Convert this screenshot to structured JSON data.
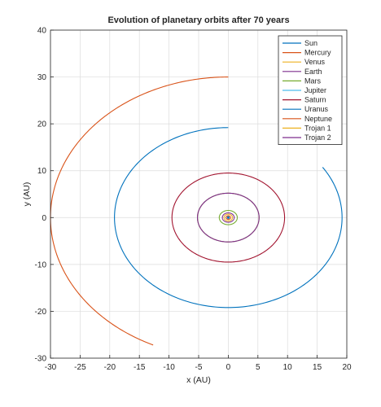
{
  "chart_data": {
    "type": "line",
    "title": "Evolution of planetary orbits after 70 years",
    "xlabel": "x (AU)",
    "ylabel": "y (AU)",
    "xlim": [
      -30,
      20
    ],
    "ylim": [
      -30,
      40
    ],
    "xticks": [
      -30,
      -25,
      -20,
      -15,
      -10,
      -5,
      0,
      5,
      10,
      15,
      20
    ],
    "yticks": [
      -30,
      -20,
      -10,
      0,
      10,
      20,
      30,
      40
    ],
    "grid": true,
    "legend_position": "top-right",
    "series": [
      {
        "name": "Sun",
        "color": "#0072BD",
        "kind": "point",
        "x": 0,
        "y": 0
      },
      {
        "name": "Mercury",
        "color": "#D95319",
        "kind": "circle",
        "radius": 0.39
      },
      {
        "name": "Venus",
        "color": "#EDB120",
        "kind": "circle",
        "radius": 0.72
      },
      {
        "name": "Earth",
        "color": "#7E2F8E",
        "kind": "circle",
        "radius": 1.0
      },
      {
        "name": "Mars",
        "color": "#77AC30",
        "kind": "circle",
        "radius": 1.52
      },
      {
        "name": "Jupiter",
        "color": "#4DBEEE",
        "kind": "circle",
        "radius": 5.2
      },
      {
        "name": "Saturn",
        "color": "#A2142F",
        "kind": "circle",
        "radius": 9.5
      },
      {
        "name": "Uranus",
        "color": "#0072BD",
        "kind": "arc",
        "radius": 19.2,
        "start_deg": 90,
        "end_deg": 394
      },
      {
        "name": "Neptune",
        "color": "#D95319",
        "kind": "arc",
        "radius": 30.0,
        "start_deg": 90,
        "end_deg": 245
      },
      {
        "name": "Trojan 1",
        "color": "#EDB120",
        "kind": "circle",
        "radius": 5.2
      },
      {
        "name": "Trojan 2",
        "color": "#7E2F8E",
        "kind": "circle",
        "radius": 5.2
      }
    ]
  }
}
